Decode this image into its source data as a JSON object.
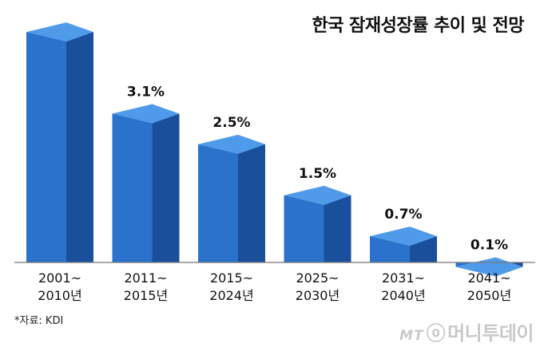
{
  "chart_data": {
    "type": "bar",
    "title": "한국 잠재성장률 추이 및 전망",
    "categories": [
      [
        "2001~",
        "2010년"
      ],
      [
        "2011~",
        "2015년"
      ],
      [
        "2015~",
        "2024년"
      ],
      [
        "2025~",
        "2030년"
      ],
      [
        "2031~",
        "2040년"
      ],
      [
        "2041~",
        "2050년"
      ]
    ],
    "values": [
      4.7,
      3.1,
      2.5,
      1.5,
      0.7,
      0.1
    ],
    "data_labels": [
      "",
      "3.1%",
      "2.5%",
      "1.5%",
      "0.7%",
      "0.1%"
    ],
    "ylim": [
      0,
      5
    ],
    "grid": false,
    "colors": {
      "front": "#2a72cc",
      "side": "#1a4f9c",
      "top": "#4f9bea"
    }
  },
  "source": "*자료: KDI",
  "brand": {
    "mt": "MT",
    "swirl": "ⓞ",
    "name": "머니투데이"
  }
}
